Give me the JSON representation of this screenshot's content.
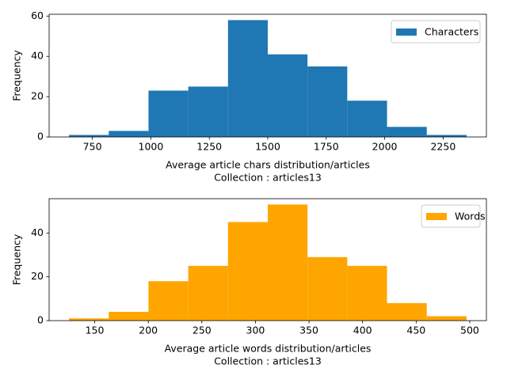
{
  "chart_data": [
    {
      "type": "histogram",
      "bins": [
        650,
        820,
        990,
        1160,
        1330,
        1500,
        1670,
        1840,
        2010,
        2180,
        2350
      ],
      "series": [
        {
          "name": "Characters",
          "color": "#1f77b4",
          "values": [
            1,
            3,
            23,
            25,
            58,
            41,
            35,
            18,
            5,
            1
          ]
        }
      ],
      "xlabel": [
        "Average article chars distribution/articles",
        "Collection : articles13"
      ],
      "ylabel": "Frequency",
      "xlim": [
        565,
        2435
      ],
      "xticks": [
        750,
        1000,
        1250,
        1500,
        1750,
        2000,
        2250
      ],
      "ylim": [
        0,
        60.9
      ],
      "yticks": [
        0,
        20,
        40,
        60
      ],
      "legend": "upper right"
    },
    {
      "type": "histogram",
      "bins": [
        126,
        163.1,
        200.2,
        237.3,
        274.4,
        311.5,
        348.6,
        385.7,
        422.8,
        459.9,
        497
      ],
      "series": [
        {
          "name": "Words",
          "color": "#ffa500",
          "values": [
            1,
            4,
            18,
            25,
            45,
            53,
            29,
            25,
            8,
            2
          ]
        }
      ],
      "xlabel": [
        "Average article words distribution/articles",
        "Collection : articles13"
      ],
      "ylabel": "Frequency",
      "xlim": [
        107.45,
        515.55
      ],
      "xticks": [
        150,
        200,
        250,
        300,
        350,
        400,
        450,
        500
      ],
      "ylim": [
        0,
        55.65
      ],
      "yticks": [
        0,
        20,
        40
      ],
      "legend": "upper right"
    }
  ]
}
